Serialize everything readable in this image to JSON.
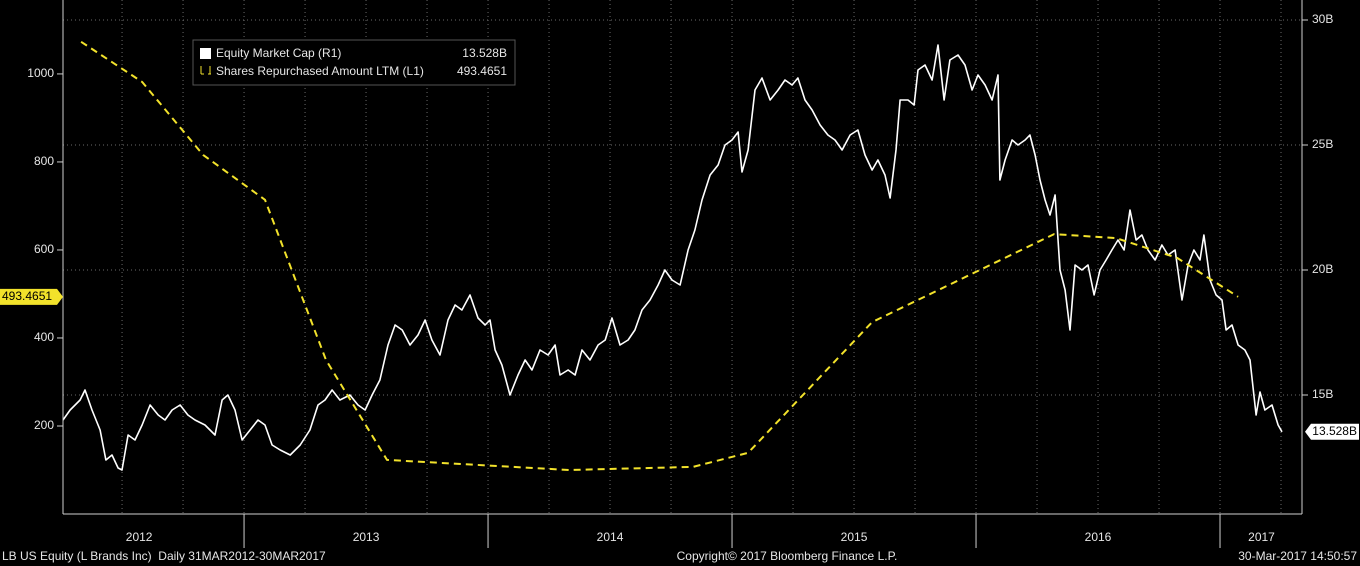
{
  "chart_data": {
    "type": "line",
    "legend": "top-left",
    "grid": "y2",
    "xlim": [
      2012.258,
      2017.336
    ],
    "xticks": [
      {
        "value": 2012.57,
        "label": "2012"
      },
      {
        "value": 2013.5,
        "label": "2013"
      },
      {
        "value": 2014.5,
        "label": "2014"
      },
      {
        "value": 2015.5,
        "label": "2015"
      },
      {
        "value": 2016.5,
        "label": "2016"
      },
      {
        "value": 2017.17,
        "label": "2017"
      }
    ],
    "xdividers": [
      2013,
      2014,
      2015,
      2016,
      2017
    ],
    "xgrid": [
      2012.5,
      2012.75,
      2013,
      2013.25,
      2013.5,
      2013.75,
      2014,
      2014.25,
      2014.5,
      2014.75,
      2015,
      2015.25,
      2015.5,
      2015.75,
      2016,
      2016.25,
      2016.5,
      2016.75,
      2017,
      2017.25
    ],
    "ylim": [
      0,
      1168
    ],
    "yticks": [
      200,
      400,
      600,
      800,
      1000
    ],
    "y2lim": [
      10.24,
      30.8
    ],
    "y2ticks": [
      {
        "value": 15,
        "label": "15B"
      },
      {
        "value": 20,
        "label": "20B"
      },
      {
        "value": 25,
        "label": "25B"
      },
      {
        "value": 30,
        "label": "30B"
      }
    ],
    "series": [
      {
        "name": "Equity Market Cap (R1)",
        "color": "#ffffff",
        "axis": "y2",
        "last_value_label": "13.528B",
        "x": [
          2012.258,
          2012.287,
          2012.328,
          2012.348,
          2012.377,
          2012.41,
          2012.434,
          2012.459,
          2012.484,
          2012.5,
          2012.525,
          2012.553,
          2012.582,
          2012.615,
          2012.648,
          2012.676,
          2012.705,
          2012.738,
          2012.77,
          2012.799,
          2012.84,
          2012.881,
          2012.91,
          2012.934,
          2012.963,
          2012.992,
          2013.025,
          2013.057,
          2013.086,
          2013.115,
          2013.148,
          2013.189,
          2013.23,
          2013.27,
          2013.303,
          2013.332,
          2013.361,
          2013.393,
          2013.434,
          2013.467,
          2013.496,
          2013.525,
          2013.557,
          2013.59,
          2013.619,
          2013.648,
          2013.68,
          2013.713,
          2013.742,
          2013.77,
          2013.803,
          2013.836,
          2013.865,
          2013.893,
          2013.926,
          2013.959,
          2013.988,
          2014.008,
          2014.029,
          2014.057,
          2014.09,
          2014.123,
          2014.152,
          2014.18,
          2014.213,
          2014.246,
          2014.275,
          2014.295,
          2014.328,
          2014.357,
          2014.385,
          2014.418,
          2014.451,
          2014.48,
          2014.508,
          2014.541,
          2014.574,
          2014.602,
          2014.631,
          2014.664,
          2014.697,
          2014.725,
          2014.754,
          2014.787,
          2014.82,
          2014.848,
          2014.877,
          2014.91,
          2014.943,
          2014.971,
          2015.0,
          2015.025,
          2015.041,
          2015.066,
          2015.094,
          2015.123,
          2015.156,
          2015.189,
          2015.217,
          2015.246,
          2015.27,
          2015.299,
          2015.328,
          2015.361,
          2015.393,
          2015.422,
          2015.451,
          2015.484,
          2015.516,
          2015.545,
          2015.574,
          2015.598,
          2015.627,
          2015.648,
          2015.672,
          2015.689,
          2015.721,
          2015.746,
          2015.762,
          2015.791,
          2015.82,
          2015.844,
          2015.869,
          2015.893,
          2015.926,
          2015.955,
          2015.984,
          2016.008,
          2016.037,
          2016.066,
          2016.09,
          2016.098,
          2016.119,
          2016.148,
          2016.172,
          2016.201,
          2016.221,
          2016.242,
          2016.262,
          2016.283,
          2016.303,
          2016.324,
          2016.344,
          2016.365,
          2016.385,
          2016.406,
          2016.434,
          2016.459,
          2016.484,
          2016.508,
          2016.533,
          2016.557,
          2016.582,
          2016.607,
          2016.631,
          2016.656,
          2016.68,
          2016.705,
          2016.734,
          2016.762,
          2016.787,
          2016.816,
          2016.844,
          2016.869,
          2016.893,
          2016.918,
          2016.934,
          2016.959,
          2016.984,
          2017.008,
          2017.025,
          2017.049,
          2017.074,
          2017.102,
          2017.123,
          2017.148,
          2017.164,
          2017.184,
          2017.213,
          2017.238,
          2017.254
        ],
        "values": [
          14.0,
          14.4,
          14.8,
          15.2,
          14.4,
          13.6,
          12.4,
          12.6,
          12.08,
          12.0,
          13.4,
          13.2,
          13.8,
          14.6,
          14.2,
          14.0,
          14.4,
          14.6,
          14.2,
          14.0,
          13.8,
          13.4,
          14.8,
          15.0,
          14.4,
          13.2,
          13.6,
          14.0,
          13.8,
          13.0,
          12.8,
          12.6,
          13.0,
          13.6,
          14.6,
          14.8,
          15.2,
          14.8,
          15.0,
          14.6,
          14.4,
          15.0,
          15.6,
          17.0,
          17.8,
          17.6,
          17.0,
          17.4,
          18.0,
          17.2,
          16.6,
          18.0,
          18.6,
          18.4,
          19.0,
          18.08,
          17.8,
          18.0,
          16.8,
          16.2,
          15.0,
          15.8,
          16.4,
          16.0,
          16.8,
          16.6,
          17.0,
          15.8,
          16.0,
          15.8,
          16.8,
          16.4,
          17.0,
          17.2,
          18.08,
          17.0,
          17.2,
          17.6,
          18.4,
          18.8,
          19.4,
          20.0,
          19.6,
          19.4,
          20.8,
          21.6,
          22.8,
          23.8,
          24.2,
          25.0,
          25.2,
          25.52,
          23.92,
          24.8,
          27.2,
          27.68,
          26.8,
          27.2,
          27.6,
          27.4,
          27.68,
          26.8,
          26.4,
          25.8,
          25.4,
          25.2,
          24.8,
          25.4,
          25.6,
          24.6,
          24.0,
          24.4,
          23.8,
          22.88,
          24.8,
          26.8,
          26.8,
          26.6,
          28.0,
          28.2,
          27.6,
          29.0,
          26.8,
          28.4,
          28.6,
          28.2,
          27.2,
          27.8,
          27.4,
          26.8,
          27.8,
          23.6,
          24.4,
          25.2,
          25.0,
          25.2,
          25.4,
          24.6,
          23.6,
          22.8,
          22.2,
          23.0,
          20.0,
          19.2,
          17.6,
          20.2,
          20.0,
          20.2,
          19.0,
          20.0,
          20.4,
          20.8,
          21.2,
          20.8,
          22.4,
          21.2,
          21.4,
          20.8,
          20.4,
          21.0,
          20.6,
          20.8,
          18.8,
          20.2,
          20.8,
          20.4,
          21.4,
          19.6,
          19.0,
          18.8,
          17.6,
          17.8,
          17.0,
          16.8,
          16.4,
          14.2,
          15.12,
          14.4,
          14.6,
          13.8,
          13.528
        ]
      },
      {
        "name": "Shares Repurchased Amount LTM (L1)",
        "color": "#f2e22b",
        "axis": "y",
        "dash": true,
        "x": [
          2012.332,
          2012.582,
          2012.832,
          2013.086,
          2013.336,
          2013.586,
          2014.332,
          2014.84,
          2015.066,
          2015.574,
          2016.32,
          2016.574,
          2016.824,
          2017.074
        ],
        "values": [
          1073,
          982,
          816,
          714,
          350,
          123,
          100,
          107,
          139,
          436,
          636,
          627,
          582,
          493.4651
        ]
      }
    ],
    "footer_left": "LB US Equity (L Brands Inc)  Daily 31MAR2012-30MAR2017",
    "footer_center": "Copyright© 2017 Bloomberg Finance L.P.",
    "footer_right": "30-Mar-2017 14:50:57"
  }
}
